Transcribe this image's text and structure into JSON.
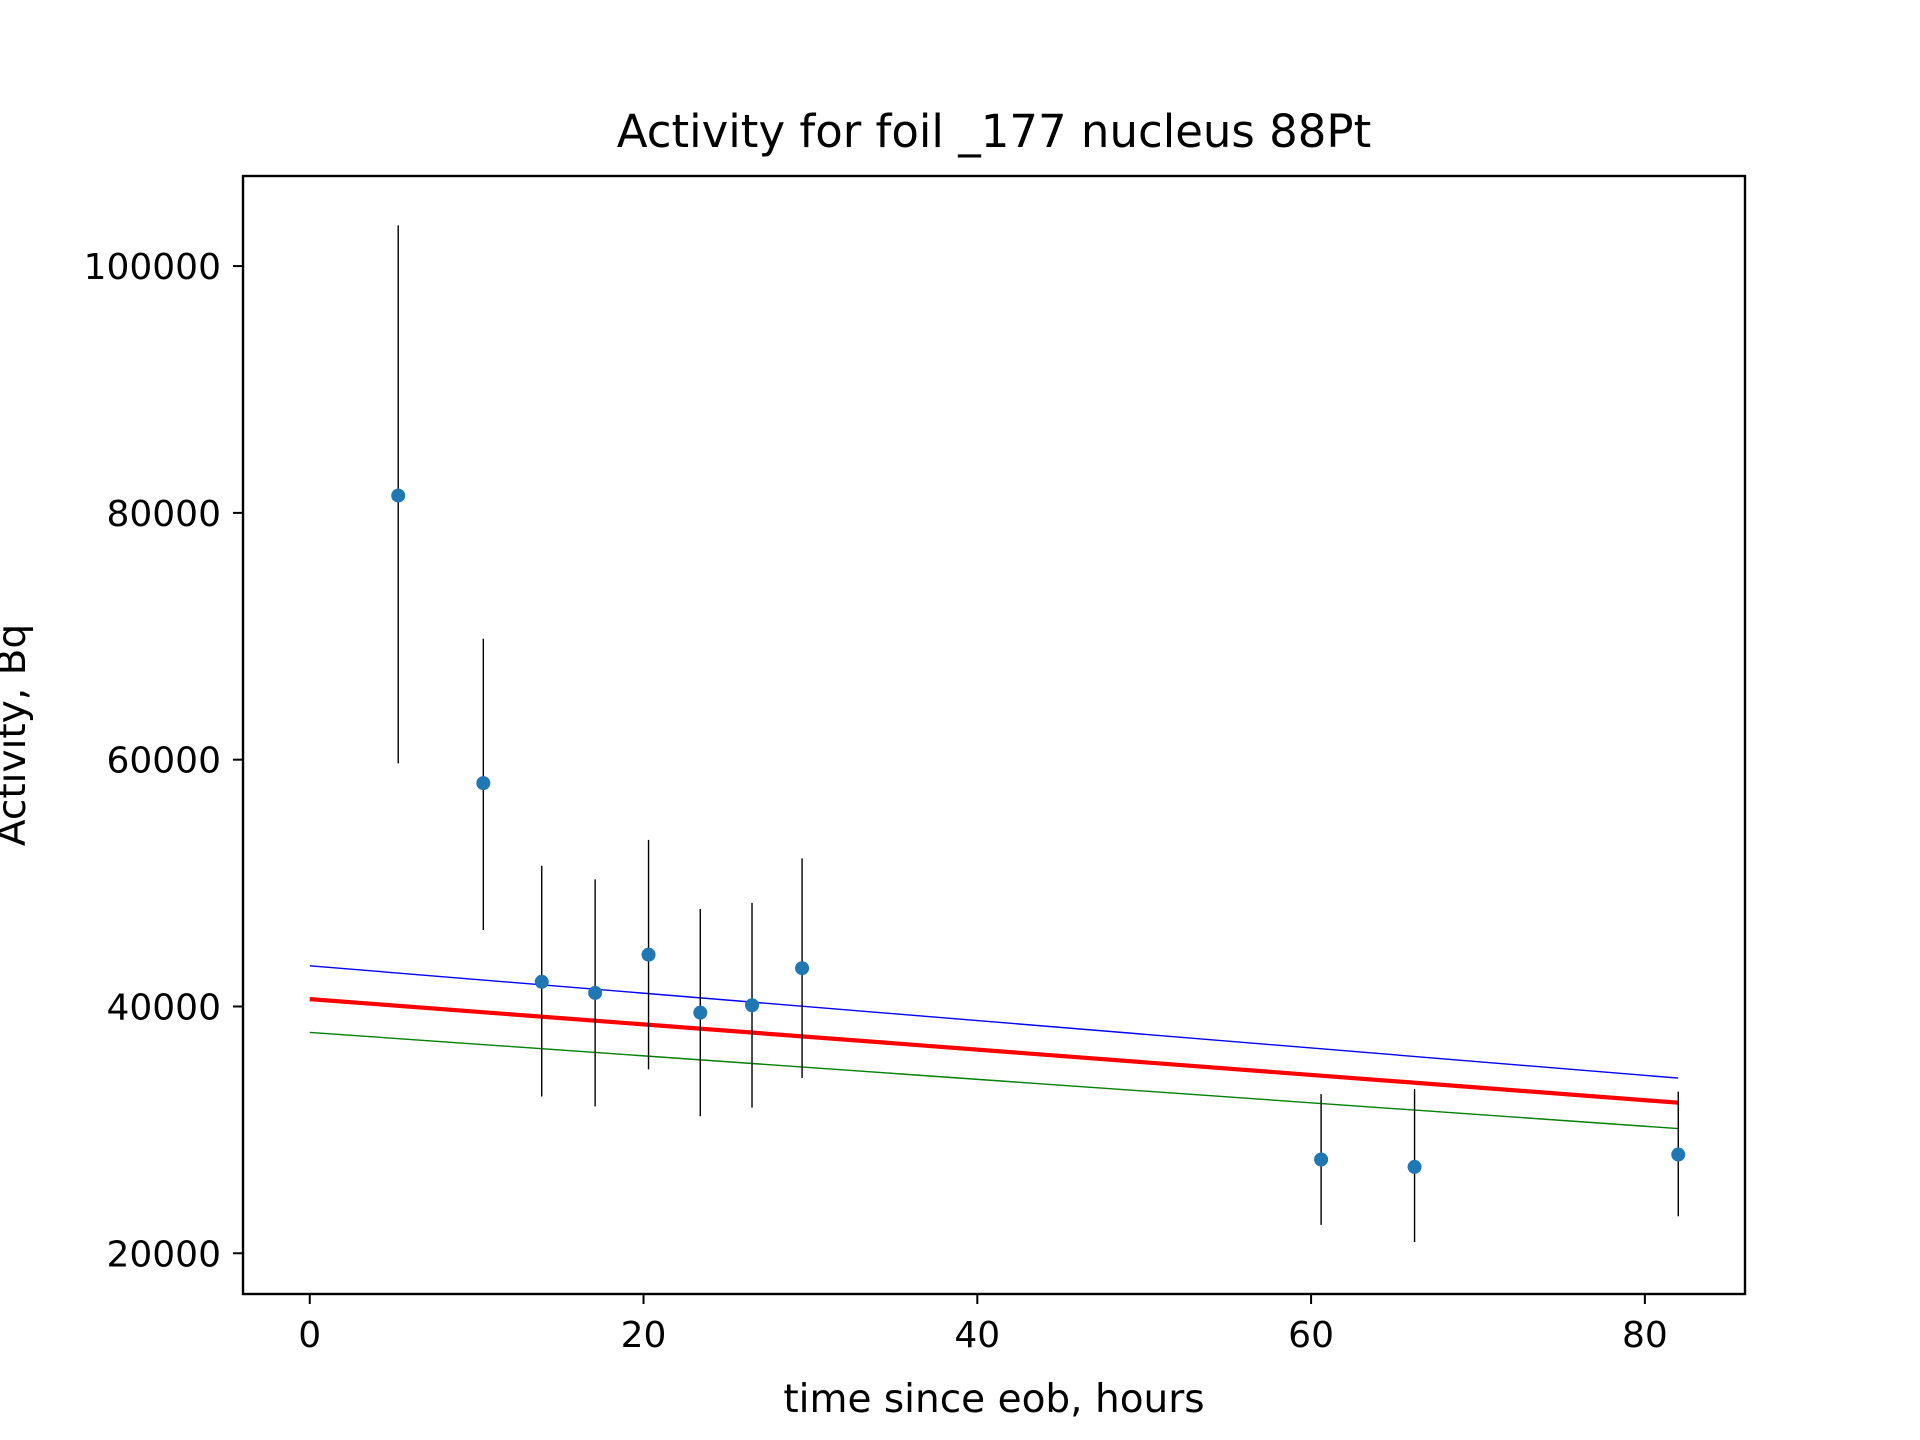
{
  "chart_data": {
    "type": "scatter",
    "title": "Activity for foil _177 nucleus 88Pt",
    "xlabel": "time since eob, hours",
    "ylabel": "Activity, Bq",
    "xlim": [
      -4,
      86
    ],
    "ylim": [
      16700,
      107300
    ],
    "xticks": [
      0,
      20,
      40,
      60,
      80
    ],
    "yticks": [
      20000,
      40000,
      60000,
      80000,
      100000
    ],
    "grid": false,
    "points": [
      {
        "x": 5.3,
        "y": 81400,
        "err_low": 59700,
        "err_high": 103300
      },
      {
        "x": 10.4,
        "y": 58100,
        "err_low": 46200,
        "err_high": 69800
      },
      {
        "x": 13.9,
        "y": 42000,
        "err_low": 32700,
        "err_high": 51400
      },
      {
        "x": 17.1,
        "y": 41100,
        "err_low": 31900,
        "err_high": 50300
      },
      {
        "x": 20.3,
        "y": 44200,
        "err_low": 34900,
        "err_high": 53500
      },
      {
        "x": 23.4,
        "y": 39500,
        "err_low": 31100,
        "err_high": 47900
      },
      {
        "x": 26.5,
        "y": 40100,
        "err_low": 31800,
        "err_high": 48400
      },
      {
        "x": 29.5,
        "y": 43100,
        "err_low": 34200,
        "err_high": 52000
      },
      {
        "x": 60.6,
        "y": 27600,
        "err_low": 22300,
        "err_high": 32900
      },
      {
        "x": 66.2,
        "y": 27000,
        "err_low": 20900,
        "err_high": 33300
      },
      {
        "x": 82.0,
        "y": 28000,
        "err_low": 23000,
        "err_high": 33100
      }
    ],
    "lines": [
      {
        "x": [
          0,
          82
        ],
        "y": [
          43300,
          34200
        ],
        "color": "#0000ff"
      },
      {
        "x": [
          0,
          82
        ],
        "y": [
          40600,
          32200
        ],
        "color": "#ff0000"
      },
      {
        "x": [
          0,
          82
        ],
        "y": [
          37900,
          30100
        ],
        "color": "#008000"
      }
    ],
    "point_color": "#1f77b4",
    "errorbar_color": "#000000"
  }
}
